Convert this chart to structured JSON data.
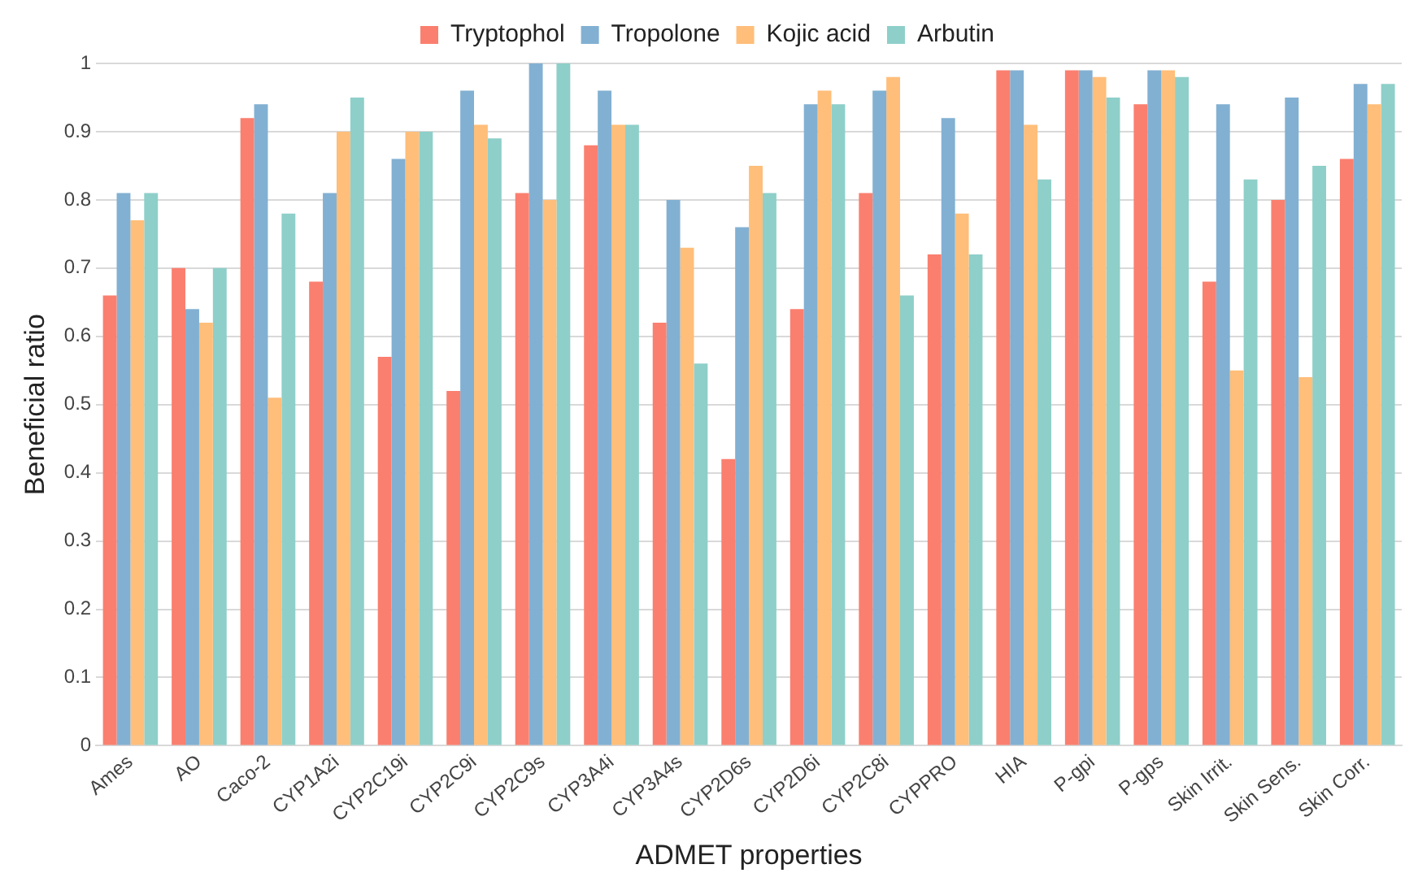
{
  "chart_data": {
    "type": "bar",
    "xlabel": "ADMET properties",
    "ylabel": "Beneficial ratio",
    "categories": [
      "Ames",
      "AO",
      "Caco-2",
      "CYP1A2i",
      "CYP2C19i",
      "CYP2C9i",
      "CYP2C9s",
      "CYP3A4i",
      "CYP3A4s",
      "CYP2D6s",
      "CYP2D6i",
      "CYP2C8i",
      "CYPPRO",
      "HIA",
      "P-gpi",
      "P-gps",
      "Skin Irrit.",
      "Skin Sens.",
      "Skin Corr."
    ],
    "series": [
      {
        "name": "Tryptophol",
        "color": "#fa7f6f",
        "values": [
          0.66,
          0.7,
          0.92,
          0.68,
          0.57,
          0.52,
          0.81,
          0.88,
          0.62,
          0.42,
          0.64,
          0.81,
          0.72,
          0.99,
          0.99,
          0.94,
          0.68,
          0.8,
          0.86
        ]
      },
      {
        "name": "Tropolone",
        "color": "#82b0d2",
        "values": [
          0.81,
          0.64,
          0.94,
          0.81,
          0.86,
          0.96,
          1.0,
          0.96,
          0.8,
          0.76,
          0.94,
          0.96,
          0.92,
          0.99,
          0.99,
          0.99,
          0.94,
          0.95,
          0.97
        ]
      },
      {
        "name": "Kojic acid",
        "color": "#ffbe7a",
        "values": [
          0.77,
          0.62,
          0.51,
          0.9,
          0.9,
          0.91,
          0.8,
          0.91,
          0.73,
          0.85,
          0.96,
          0.98,
          0.78,
          0.91,
          0.98,
          0.99,
          0.55,
          0.54,
          0.94
        ]
      },
      {
        "name": "Arbutin",
        "color": "#8ecfc9",
        "values": [
          0.81,
          0.7,
          0.78,
          0.95,
          0.9,
          0.89,
          1.0,
          0.91,
          0.56,
          0.81,
          0.94,
          0.66,
          0.72,
          0.83,
          0.95,
          0.98,
          0.83,
          0.85,
          0.97
        ]
      }
    ],
    "ylim": [
      0,
      1
    ],
    "yticks": [
      0,
      0.1,
      0.2,
      0.3,
      0.4,
      0.5,
      0.6,
      0.7,
      0.8,
      0.9,
      1
    ],
    "grid": "y",
    "legend": "top"
  }
}
